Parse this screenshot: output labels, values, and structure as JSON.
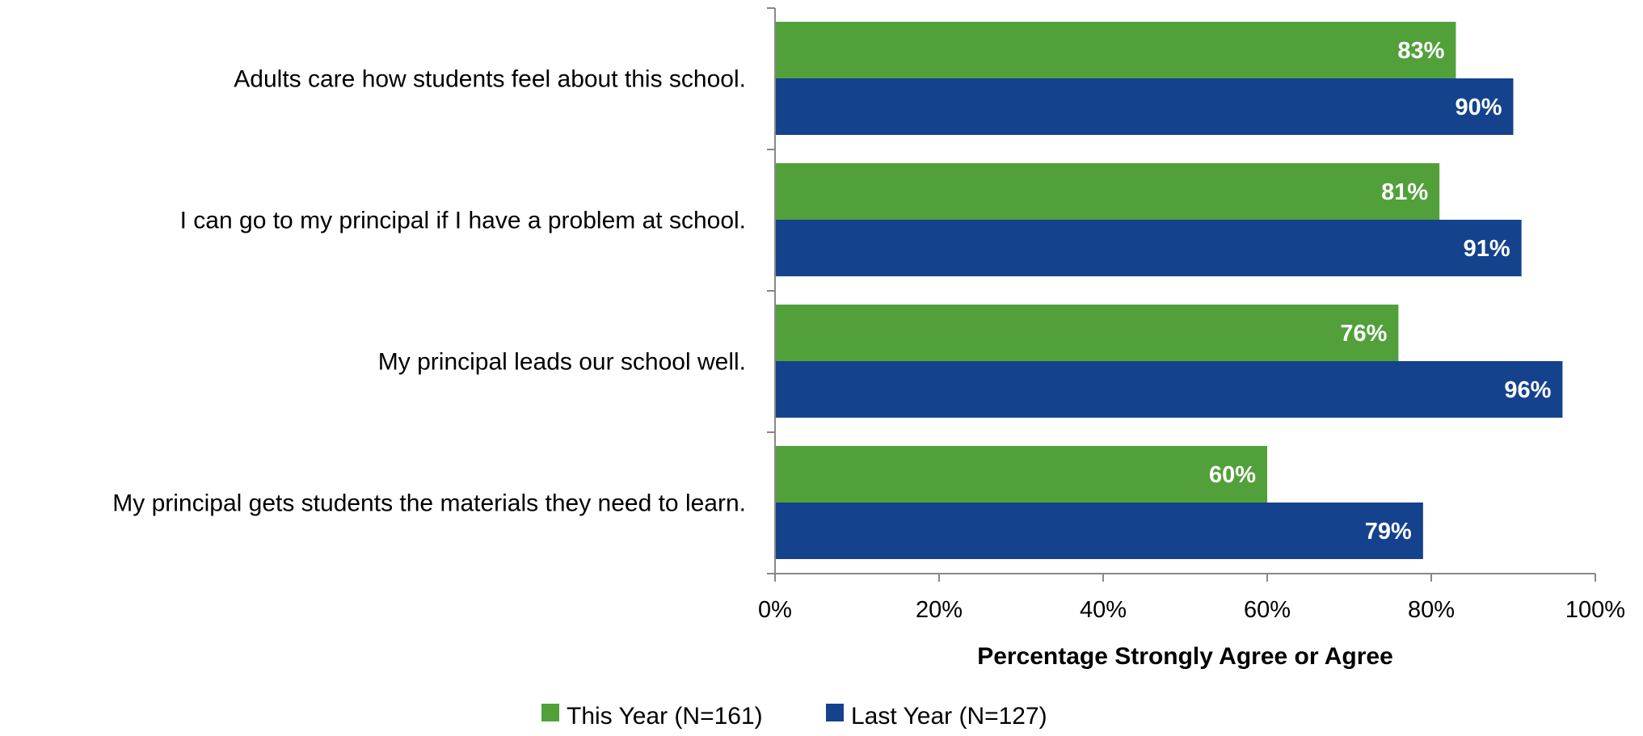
{
  "chart_data": {
    "type": "bar",
    "orientation": "horizontal",
    "categories": [
      "Adults care how students feel about this school.",
      "I can go to my principal if I have a problem at school.",
      "My principal leads our school well.",
      "My principal gets students the materials they need to learn."
    ],
    "series": [
      {
        "name": "This Year (N=161)",
        "color": "#52A03A",
        "values": [
          83,
          81,
          76,
          60
        ]
      },
      {
        "name": "Last Year (N=127)",
        "color": "#15428C",
        "values": [
          90,
          91,
          96,
          79
        ]
      }
    ],
    "value_suffix": "%",
    "xlabel": "Percentage Strongly Agree or Agree",
    "xlim": [
      0,
      100
    ],
    "xticks": [
      0,
      20,
      40,
      60,
      80,
      100
    ],
    "xtick_labels": [
      "0%",
      "20%",
      "40%",
      "60%",
      "80%",
      "100%"
    ],
    "grid": false,
    "legend_position": "bottom",
    "axis_color": "#888888"
  }
}
